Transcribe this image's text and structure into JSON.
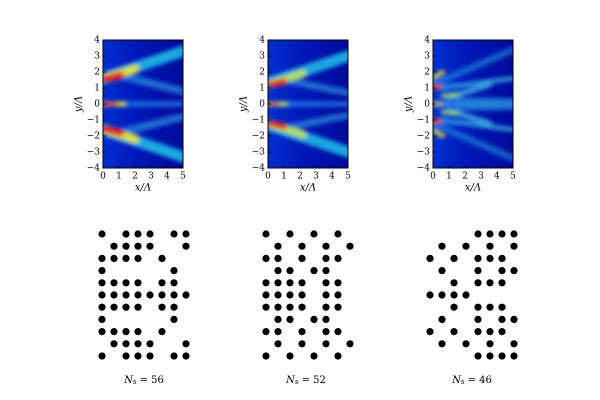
{
  "panels": [
    {
      "heatmap": {
        "xlim": [
          0,
          5
        ],
        "ylim": [
          -4,
          4
        ],
        "xticks": [
          0,
          1,
          2,
          3,
          4,
          5
        ],
        "yticks": [
          {
            "value": -4,
            "label": "−4"
          },
          {
            "value": -3,
            "label": "−3"
          },
          {
            "value": -2,
            "label": "−2"
          },
          {
            "value": -1,
            "label": "−1"
          },
          0,
          1,
          2,
          3,
          4
        ],
        "xlabel": "x/Λ",
        "ylabel": "y/Λ"
      },
      "pattern": {
        "rows": [
          [
            0,
            2,
            3,
            4,
            6,
            7
          ],
          [
            1,
            2,
            3,
            4,
            7
          ],
          [
            0,
            1,
            2,
            3,
            5
          ],
          [
            0,
            6
          ],
          [
            0,
            1,
            2,
            3,
            5,
            6
          ],
          [
            0,
            1,
            2,
            3,
            4,
            5,
            6,
            7
          ],
          [
            0,
            1,
            2,
            3,
            5,
            6
          ],
          [
            0,
            6
          ],
          [
            0,
            1,
            2,
            3,
            5
          ],
          [
            1,
            2,
            3,
            4,
            7
          ],
          [
            0,
            2,
            3,
            4,
            6,
            7
          ]
        ],
        "label_symbol": "N",
        "label_subscript": "s",
        "label_value": " = 56"
      }
    },
    {
      "heatmap": {
        "xlim": [
          0,
          5
        ],
        "ylim": [
          -4,
          4
        ],
        "xticks": [
          0,
          1,
          2,
          3,
          4,
          5
        ],
        "yticks": [
          {
            "value": -4,
            "label": "−4"
          },
          {
            "value": -3,
            "label": "−3"
          },
          {
            "value": -2,
            "label": "−2"
          },
          {
            "value": -1,
            "label": "−1"
          },
          0,
          1,
          2,
          3,
          4
        ],
        "xlabel": "x/Λ",
        "ylabel": "y/Λ"
      },
      "pattern": {
        "rows": [
          [
            0,
            2,
            4,
            6
          ],
          [
            1,
            3,
            5,
            7
          ],
          [
            0,
            1,
            3,
            5,
            6
          ],
          [
            1,
            2,
            4,
            5
          ],
          [
            0,
            1,
            2,
            3,
            5,
            6
          ],
          [
            0,
            1,
            2,
            3,
            5,
            6
          ],
          [
            0,
            1,
            2,
            3,
            5,
            6
          ],
          [
            1,
            2,
            4,
            5
          ],
          [
            0,
            1,
            3,
            5,
            6
          ],
          [
            1,
            3,
            5,
            7
          ],
          [
            0,
            2,
            4,
            6
          ]
        ],
        "label_symbol": "N",
        "label_subscript": "s",
        "label_value": " = 52"
      }
    },
    {
      "heatmap": {
        "xlim": [
          0,
          5
        ],
        "ylim": [
          -4,
          4
        ],
        "xticks": [
          0,
          1,
          2,
          3,
          4,
          5
        ],
        "yticks": [
          {
            "value": -4,
            "label": "−4"
          },
          {
            "value": -3,
            "label": "−3"
          },
          {
            "value": -2,
            "label": "−2"
          },
          {
            "value": -1,
            "label": "−1"
          },
          0,
          1,
          2,
          3,
          4
        ],
        "xlabel": "x/Λ",
        "ylabel": "y/Λ"
      },
      "pattern": {
        "rows": [
          [
            4,
            5,
            6,
            7
          ],
          [
            1,
            3,
            5,
            7
          ],
          [
            0,
            2,
            4,
            5,
            6
          ],
          [
            1,
            4,
            6,
            7
          ],
          [
            2,
            4,
            5,
            6
          ],
          [
            0,
            1,
            2,
            3
          ],
          [
            2,
            4,
            5,
            6
          ],
          [
            1,
            4,
            6,
            7
          ],
          [
            0,
            2,
            4,
            5,
            6
          ],
          [
            1,
            3,
            5,
            7
          ],
          [
            4,
            5,
            6,
            7
          ]
        ],
        "label_symbol": "N",
        "label_subscript": "s",
        "label_value": " = 46"
      }
    }
  ]
}
